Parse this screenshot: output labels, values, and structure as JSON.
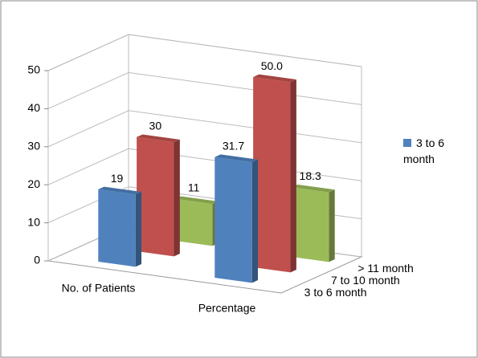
{
  "chart_data": {
    "type": "bar3d",
    "categories": [
      "No. of Patients",
      "Percentage"
    ],
    "series": [
      {
        "name": "3 to 6 month",
        "color": "#4f81bd",
        "values": [
          19,
          31.7
        ],
        "value_labels": [
          "19",
          "31.7"
        ]
      },
      {
        "name": "7 to 10 month",
        "color": "#c0504d",
        "values": [
          30,
          50.0
        ],
        "value_labels": [
          "30",
          "50.0"
        ]
      },
      {
        "name": "> 11 month",
        "color": "#9bbb59",
        "values": [
          11,
          18.3
        ],
        "value_labels": [
          "11",
          "18.3"
        ]
      }
    ],
    "legend_series": [
      0
    ],
    "ylim": [
      0,
      50
    ],
    "yticks": [
      0,
      10,
      20,
      30,
      40,
      50
    ],
    "grid": true
  }
}
